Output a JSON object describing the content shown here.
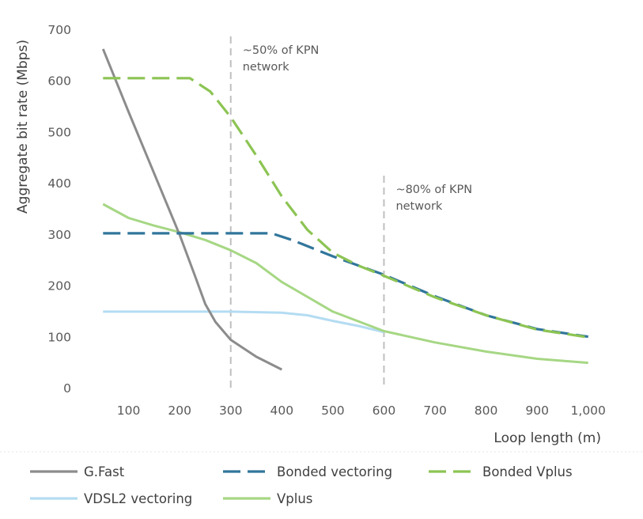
{
  "chart_data": {
    "type": "line",
    "xlabel": "Loop length (m)",
    "ylabel": "Aggregate bit rate (Mbps)",
    "xlim": [
      50,
      1000
    ],
    "ylim": [
      0,
      700
    ],
    "x_ticks": [
      "100",
      "200",
      "300",
      "400",
      "500",
      "600",
      "700",
      "800",
      "900",
      "1,000"
    ],
    "y_ticks": [
      "0",
      "100",
      "200",
      "300",
      "400",
      "500",
      "600",
      "700"
    ],
    "grid": false,
    "legend_position": "bottom",
    "series": [
      {
        "name": "G.Fast",
        "color": "#8c8c8c",
        "dash": "solid",
        "points": [
          [
            50,
            663
          ],
          [
            100,
            540
          ],
          [
            150,
            420
          ],
          [
            200,
            300
          ],
          [
            230,
            220
          ],
          [
            250,
            165
          ],
          [
            270,
            130
          ],
          [
            300,
            95
          ],
          [
            350,
            62
          ],
          [
            400,
            37
          ]
        ]
      },
      {
        "name": "Bonded vectoring",
        "color": "#31769b",
        "dash": "dashed",
        "points": [
          [
            50,
            303
          ],
          [
            200,
            303
          ],
          [
            300,
            303
          ],
          [
            380,
            303
          ],
          [
            420,
            290
          ],
          [
            500,
            258
          ],
          [
            600,
            222
          ],
          [
            700,
            180
          ],
          [
            800,
            143
          ],
          [
            900,
            116
          ],
          [
            1000,
            101
          ]
        ]
      },
      {
        "name": "Bonded Vplus",
        "color": "#8cc453",
        "dash": "dashed",
        "points": [
          [
            50,
            606
          ],
          [
            150,
            606
          ],
          [
            220,
            606
          ],
          [
            260,
            580
          ],
          [
            300,
            530
          ],
          [
            350,
            455
          ],
          [
            400,
            375
          ],
          [
            450,
            310
          ],
          [
            500,
            265
          ],
          [
            550,
            240
          ],
          [
            600,
            220
          ],
          [
            700,
            178
          ],
          [
            800,
            143
          ],
          [
            900,
            115
          ],
          [
            1000,
            100
          ]
        ]
      },
      {
        "name": "VDSL2 vectoring",
        "color": "#b4dcf2",
        "dash": "solid",
        "points": [
          [
            50,
            150
          ],
          [
            200,
            150
          ],
          [
            300,
            150
          ],
          [
            400,
            148
          ],
          [
            450,
            143
          ],
          [
            500,
            132
          ],
          [
            550,
            122
          ],
          [
            600,
            110
          ]
        ]
      },
      {
        "name": "Vplus",
        "color": "#a6d784",
        "dash": "solid",
        "points": [
          [
            50,
            360
          ],
          [
            100,
            333
          ],
          [
            150,
            318
          ],
          [
            200,
            305
          ],
          [
            250,
            290
          ],
          [
            300,
            270
          ],
          [
            350,
            245
          ],
          [
            400,
            208
          ],
          [
            500,
            150
          ],
          [
            600,
            112
          ],
          [
            700,
            90
          ],
          [
            800,
            72
          ],
          [
            900,
            58
          ],
          [
            1000,
            50
          ]
        ]
      }
    ],
    "annotations": [
      {
        "x": 300,
        "lines": [
          "~50% of KPN",
          "network"
        ]
      },
      {
        "x": 600,
        "lines": [
          "~80% of KPN",
          "network"
        ]
      }
    ]
  }
}
